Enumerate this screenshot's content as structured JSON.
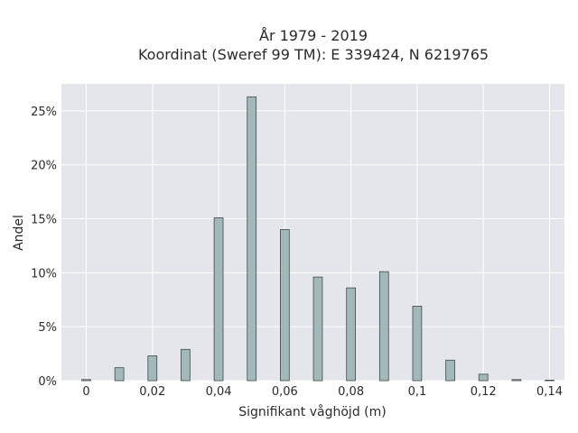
{
  "chart_data": {
    "type": "bar",
    "title_lines": [
      "År 1979 - 2019",
      "Koordinat (Sweref 99 TM): E 339424, N 6219765"
    ],
    "xlabel": "Signifikant våghöjd (m)",
    "ylabel": "Andel",
    "x_ticks": [
      {
        "value": 0,
        "label": "0"
      },
      {
        "value": 0.02,
        "label": "0,02"
      },
      {
        "value": 0.04,
        "label": "0,04"
      },
      {
        "value": 0.06,
        "label": "0,06"
      },
      {
        "value": 0.08,
        "label": "0,08"
      },
      {
        "value": 0.1,
        "label": "0,1"
      },
      {
        "value": 0.12,
        "label": "0,12"
      },
      {
        "value": 0.14,
        "label": "0,14"
      }
    ],
    "y_ticks": [
      {
        "value": 0,
        "label": "0%"
      },
      {
        "value": 5,
        "label": "5%"
      },
      {
        "value": 10,
        "label": "10%"
      },
      {
        "value": 15,
        "label": "15%"
      },
      {
        "value": 20,
        "label": "20%"
      },
      {
        "value": 25,
        "label": "25%"
      }
    ],
    "xlim": [
      -0.0075,
      0.1445
    ],
    "ylim": [
      0,
      27.5
    ],
    "bar_width": 0.0027,
    "x": [
      0.0,
      0.01,
      0.02,
      0.03,
      0.04,
      0.05,
      0.06,
      0.07,
      0.08,
      0.09,
      0.1,
      0.11,
      0.12,
      0.13,
      0.14
    ],
    "values": [
      0.1,
      1.2,
      2.3,
      2.9,
      15.1,
      26.3,
      14.0,
      9.6,
      8.6,
      10.1,
      6.9,
      1.9,
      0.6,
      0.1,
      0.05
    ],
    "colors": {
      "plot_bg": "#e5e5ec",
      "grid": "#ffffff",
      "bar_fill": "#a3b8b8",
      "bar_stroke": "#3e4a4a"
    },
    "grid": true
  }
}
